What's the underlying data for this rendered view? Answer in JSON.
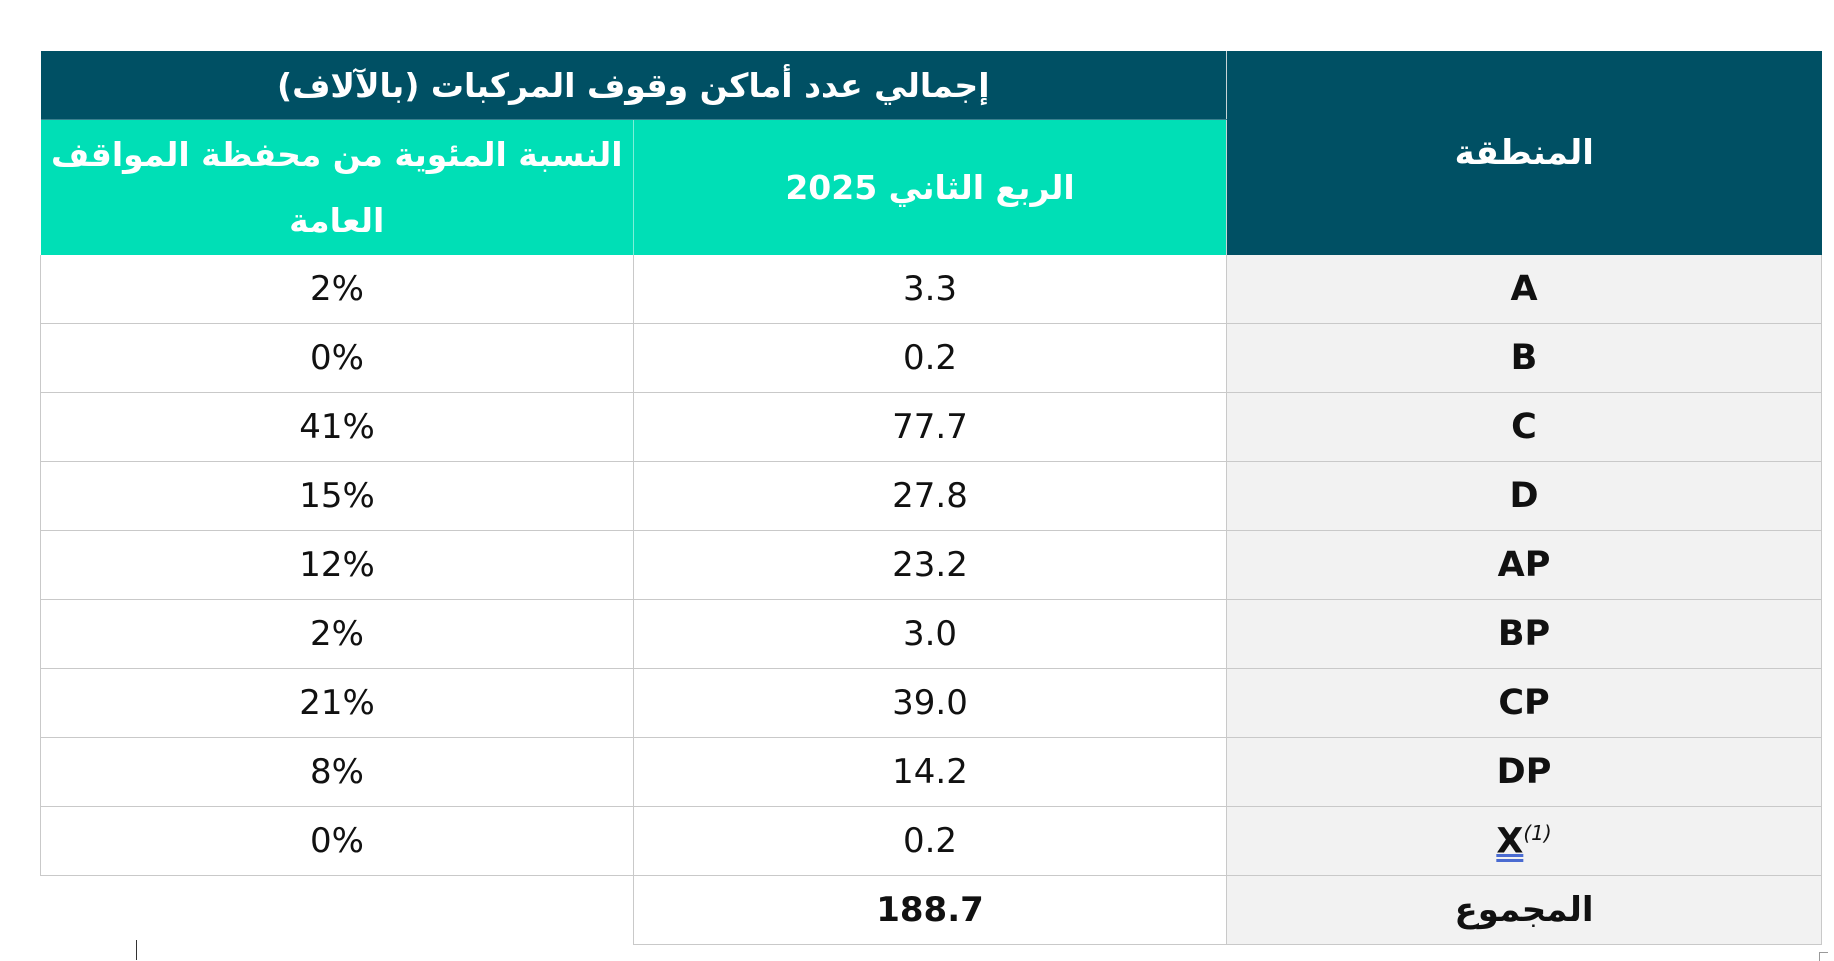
{
  "table": {
    "header_main": "إجمالي عدد أماكن وقوف المركبات (بالآلاف)",
    "header_region": "المنطقة",
    "header_q2": "الربع الثاني 2025",
    "header_pct": "النسبة المئوية من محفظة المواقف العامة",
    "rows": [
      {
        "region": "A",
        "q2": "3.3",
        "pct": "2%"
      },
      {
        "region": "B",
        "q2": "0.2",
        "pct": "0%"
      },
      {
        "region": "C",
        "q2": "77.7",
        "pct": "41%"
      },
      {
        "region": "D",
        "q2": "27.8",
        "pct": "15%"
      },
      {
        "region": "AP",
        "q2": "23.2",
        "pct": "12%"
      },
      {
        "region": "BP",
        "q2": "3.0",
        "pct": "2%"
      },
      {
        "region": "CP",
        "q2": "39.0",
        "pct": "21%"
      },
      {
        "region": "DP",
        "q2": "14.2",
        "pct": "8%"
      },
      {
        "region": "X",
        "region_note": "(1)",
        "q2": "0.2",
        "pct": "0%"
      }
    ],
    "total_label": "المجموع",
    "total_value": "188.7"
  }
}
